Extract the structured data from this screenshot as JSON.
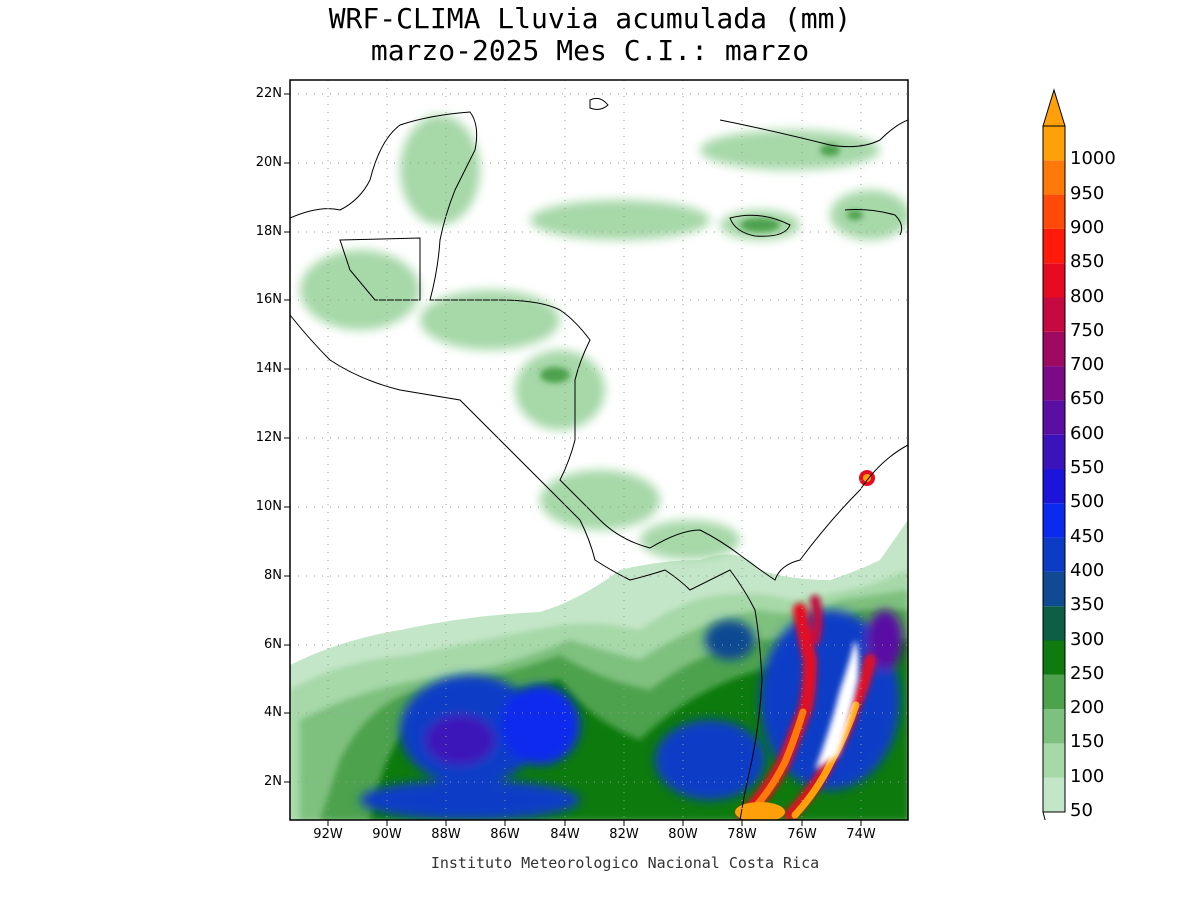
{
  "title": {
    "line1": "WRF-CLIMA Lluvia acumulada (mm)",
    "line2": "marzo-2025 Mes C.I.: marzo"
  },
  "credit": "Instituto Meteorologico Nacional Costa Rica",
  "axes": {
    "lon_ticks": [
      "92W",
      "90W",
      "88W",
      "86W",
      "84W",
      "82W",
      "80W",
      "78W",
      "76W",
      "74W"
    ],
    "lat_ticks": [
      "22N",
      "20N",
      "18N",
      "16N",
      "14N",
      "12N",
      "10N",
      "8N",
      "6N",
      "4N",
      "2N"
    ],
    "lon_range": [
      -93.1,
      -72.6
    ],
    "lat_range": [
      1.0,
      22.4
    ],
    "grid": "dotted"
  },
  "colorbar": {
    "levels": [
      "50",
      "100",
      "150",
      "200",
      "250",
      "300",
      "350",
      "400",
      "450",
      "500",
      "550",
      "600",
      "650",
      "700",
      "750",
      "800",
      "850",
      "900",
      "950",
      "1000"
    ],
    "colors": [
      "#c4e6c8",
      "#a6d8a8",
      "#7ec07e",
      "#4ea24e",
      "#0e7a10",
      "#0d5e45",
      "#0f4a92",
      "#0c3cc6",
      "#0a2aee",
      "#1c14d8",
      "#3c12ba",
      "#5a0ea4",
      "#7a0a86",
      "#9e0a62",
      "#c40a40",
      "#e60a22",
      "#ff1a0a",
      "#ff4a0a",
      "#ff780a",
      "#ffa00a"
    ],
    "overflow_color": "#ffa00a"
  }
}
